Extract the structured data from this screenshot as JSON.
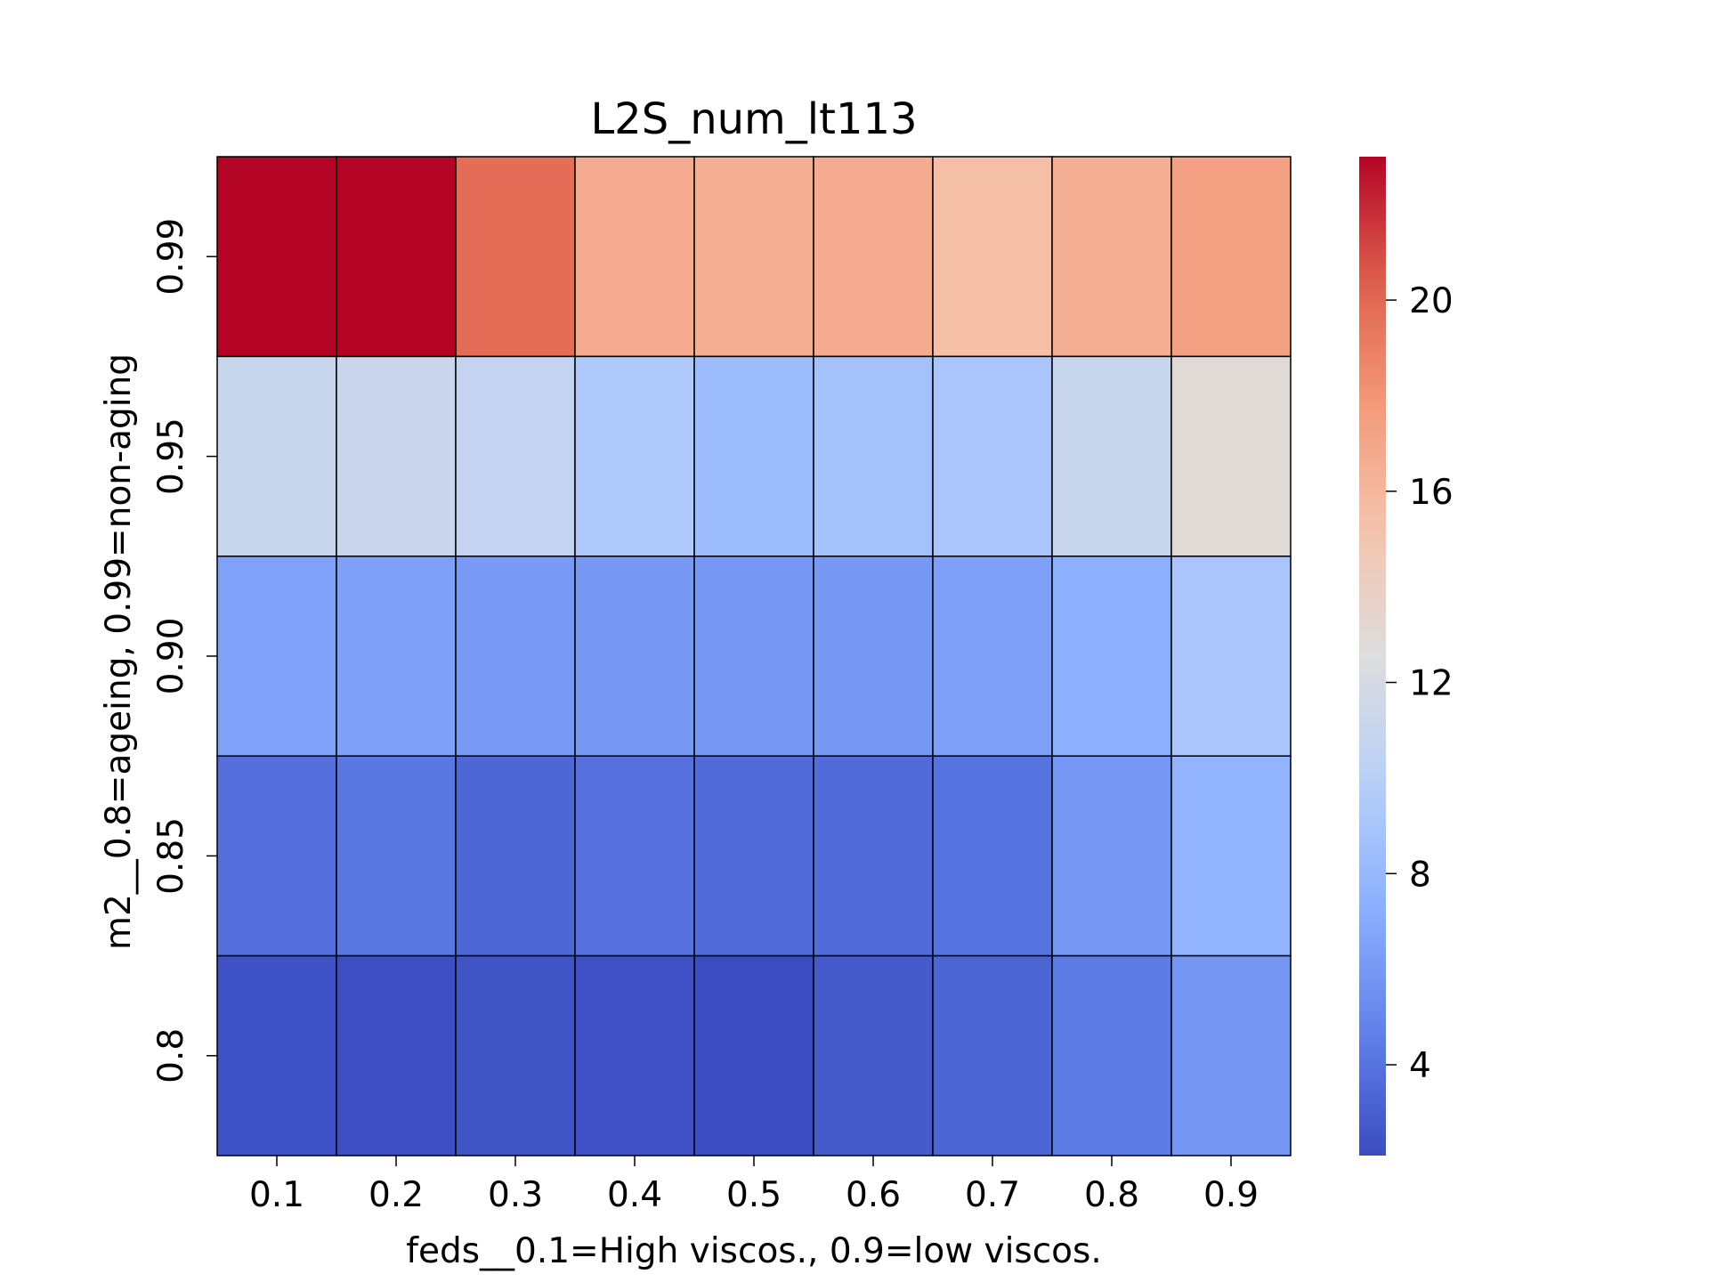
{
  "chart_data": {
    "type": "heatmap",
    "title": "L2S_num_lt113",
    "xlabel": "feds__0.1=High viscos., 0.9=low viscos.",
    "ylabel": "m2__0.8=ageing, 0.99=non-aging",
    "x_categories": [
      "0.1",
      "0.2",
      "0.3",
      "0.4",
      "0.5",
      "0.6",
      "0.7",
      "0.8",
      "0.9"
    ],
    "y_categories": [
      "0.99",
      "0.95",
      "0.90",
      "0.85",
      "0.8"
    ],
    "values": [
      [
        23.0,
        23.0,
        19.8,
        16.7,
        16.5,
        16.7,
        15.5,
        16.5,
        17.4
      ],
      [
        11.1,
        11.2,
        10.8,
        9.4,
        8.3,
        8.7,
        9.0,
        11.1,
        12.9
      ],
      [
        6.5,
        6.4,
        6.1,
        6.0,
        5.9,
        6.0,
        6.4,
        7.3,
        9.0
      ],
      [
        3.8,
        4.2,
        3.4,
        3.9,
        3.6,
        3.6,
        4.0,
        5.9,
        7.6
      ],
      [
        2.4,
        2.2,
        2.5,
        2.3,
        2.1,
        2.8,
        3.3,
        4.4,
        5.8
      ]
    ],
    "colorbar": {
      "colormap": "coolwarm",
      "vmin": 2.1,
      "vmax": 23.0,
      "ticks": [
        "4",
        "8",
        "12",
        "16",
        "20"
      ]
    },
    "cell_border_color": "#000000"
  }
}
